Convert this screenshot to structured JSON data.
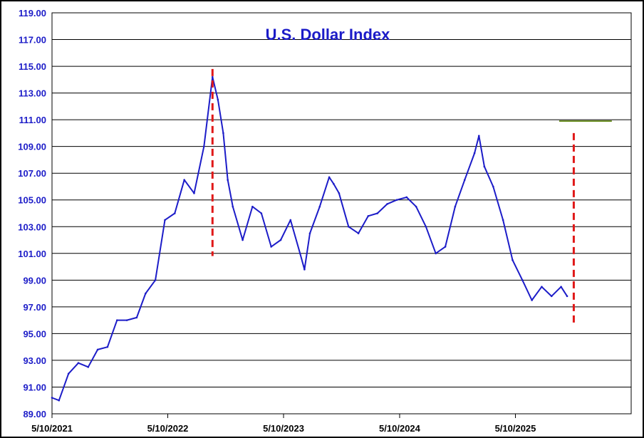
{
  "chart_data": {
    "type": "line",
    "title": "U.S. Dollar Index",
    "xlabel": "",
    "ylabel": "",
    "ylim": [
      89.0,
      119.0
    ],
    "y_ticks": [
      "89.00",
      "91.00",
      "93.00",
      "95.00",
      "97.00",
      "99.00",
      "101.00",
      "103.00",
      "105.00",
      "107.00",
      "109.00",
      "111.00",
      "113.00",
      "115.00",
      "117.00",
      "119.00"
    ],
    "x_ticks": [
      "5/10/2021",
      "5/10/2022",
      "5/10/2023",
      "5/10/2024",
      "5/10/2025"
    ],
    "xlim": [
      "2021-05-10",
      "2026-05-10"
    ],
    "grid": true,
    "colors": {
      "series": "#1c1cc8",
      "marker_line": "#e01818",
      "resistance_line": "#6b8e23",
      "text": "#1c1cc8"
    },
    "series": [
      {
        "x": [
          "2021-05-10",
          "2021-06-01",
          "2021-07-01",
          "2021-08-01",
          "2021-09-01",
          "2021-10-01",
          "2021-11-01",
          "2021-12-01",
          "2022-01-01",
          "2022-02-01",
          "2022-03-01",
          "2022-04-01",
          "2022-05-01",
          "2022-06-01",
          "2022-07-01",
          "2022-08-01",
          "2022-09-01",
          "2022-09-28",
          "2022-10-15",
          "2022-11-01",
          "2022-11-15",
          "2022-12-01",
          "2023-01-01",
          "2023-02-01",
          "2023-03-01",
          "2023-04-01",
          "2023-05-01",
          "2023-06-01",
          "2023-07-01",
          "2023-07-15",
          "2023-08-01",
          "2023-09-01",
          "2023-10-01",
          "2023-10-15",
          "2023-11-01",
          "2023-12-01",
          "2024-01-01",
          "2024-02-01",
          "2024-03-01",
          "2024-04-01",
          "2024-05-01",
          "2024-06-01",
          "2024-07-01",
          "2024-08-01",
          "2024-09-01",
          "2024-10-01",
          "2024-11-01",
          "2024-12-01",
          "2025-01-01",
          "2025-01-15",
          "2025-02-01",
          "2025-03-01",
          "2025-04-01",
          "2025-05-01",
          "2025-06-01",
          "2025-07-01",
          "2025-08-01",
          "2025-09-01",
          "2025-10-01",
          "2025-10-20"
        ],
        "values": [
          90.2,
          90.0,
          92.0,
          92.8,
          92.5,
          93.8,
          94.0,
          96.0,
          96.0,
          96.2,
          98.0,
          99.0,
          103.5,
          104.0,
          106.5,
          105.5,
          109.0,
          114.2,
          112.5,
          110.0,
          106.5,
          104.5,
          102.0,
          104.5,
          104.0,
          101.5,
          102.0,
          103.5,
          101.0,
          99.8,
          102.5,
          104.5,
          106.7,
          106.2,
          105.5,
          103.0,
          102.5,
          103.8,
          104.0,
          104.7,
          105.0,
          105.2,
          104.5,
          103.0,
          101.0,
          101.5,
          104.5,
          106.5,
          108.5,
          109.8,
          107.5,
          106.0,
          103.5,
          100.5,
          99.0,
          97.5,
          98.5,
          97.8,
          98.5,
          97.8
        ]
      }
    ],
    "annotations": [
      {
        "type": "vertical_dashed_line",
        "x": "2022-09-28",
        "y_from": 100.8,
        "y_to": 114.8
      },
      {
        "type": "vertical_dashed_line",
        "x": "2025-11-10",
        "y_from": 95.8,
        "y_to": 110.0
      },
      {
        "type": "horizontal_line",
        "y": 110.9,
        "x_from": "2025-09-25",
        "x_to": "2026-03-10"
      }
    ]
  }
}
